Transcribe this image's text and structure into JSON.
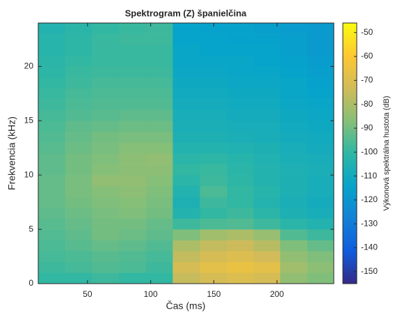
{
  "chart_data": {
    "type": "heatmap",
    "title": "Spektrogram (Z) španielčina",
    "x_label": "Čas (ms)",
    "y_label": "Frekvencia (kHz)",
    "colorbar_label": "Výkonová spektrálna hustota (dB)",
    "colormap": "parula",
    "x": [
      22,
      43,
      64,
      86,
      107,
      128,
      150,
      171,
      192,
      213,
      235
    ],
    "y": [
      0.5,
      1.5,
      2.5,
      3.5,
      4.5,
      5.5,
      6.5,
      7.5,
      8.5,
      9.5,
      10.5,
      11.5,
      12.5,
      13.5,
      14.5,
      15.5,
      16.5,
      17.5,
      18.5,
      19.5,
      20.5,
      21.5,
      22.5,
      23.5
    ],
    "z": [
      [
        -100,
        -100,
        -98,
        -100,
        -100,
        -75,
        -72,
        -70,
        -72,
        -85,
        -88
      ],
      [
        -98,
        -97,
        -95,
        -96,
        -98,
        -72,
        -68,
        -66,
        -68,
        -82,
        -86
      ],
      [
        -97,
        -96,
        -94,
        -95,
        -97,
        -76,
        -72,
        -70,
        -73,
        -85,
        -88
      ],
      [
        -96,
        -94,
        -92,
        -93,
        -95,
        -80,
        -76,
        -74,
        -78,
        -88,
        -92
      ],
      [
        -95,
        -93,
        -90,
        -91,
        -93,
        -88,
        -82,
        -80,
        -84,
        -95,
        -98
      ],
      [
        -94,
        -92,
        -90,
        -90,
        -92,
        -98,
        -96,
        -95,
        -98,
        -102,
        -104
      ],
      [
        -93,
        -91,
        -89,
        -88,
        -90,
        -104,
        -100,
        -98,
        -102,
        -106,
        -108
      ],
      [
        -92,
        -90,
        -88,
        -87,
        -89,
        -106,
        -98,
        -100,
        -104,
        -107,
        -109
      ],
      [
        -92,
        -89,
        -87,
        -86,
        -88,
        -104,
        -96,
        -100,
        -103,
        -106,
        -108
      ],
      [
        -92,
        -89,
        -85,
        -85,
        -87,
        -102,
        -98,
        -101,
        -104,
        -106,
        -108
      ],
      [
        -93,
        -90,
        -87,
        -86,
        -86,
        -100,
        -99,
        -102,
        -104,
        -106,
        -107
      ],
      [
        -93,
        -90,
        -88,
        -86,
        -85,
        -102,
        -101,
        -103,
        -105,
        -107,
        -108
      ],
      [
        -94,
        -91,
        -89,
        -87,
        -87,
        -104,
        -104,
        -105,
        -106,
        -108,
        -109
      ],
      [
        -95,
        -92,
        -90,
        -89,
        -89,
        -106,
        -106,
        -107,
        -108,
        -109,
        -110
      ],
      [
        -96,
        -93,
        -92,
        -91,
        -91,
        -107,
        -107,
        -108,
        -108,
        -110,
        -111
      ],
      [
        -97,
        -95,
        -94,
        -93,
        -93,
        -108,
        -108,
        -109,
        -109,
        -111,
        -112
      ],
      [
        -98,
        -96,
        -95,
        -95,
        -95,
        -109,
        -109,
        -110,
        -110,
        -112,
        -113
      ],
      [
        -99,
        -97,
        -96,
        -96,
        -96,
        -110,
        -110,
        -111,
        -111,
        -113,
        -114
      ],
      [
        -100,
        -98,
        -97,
        -97,
        -97,
        -111,
        -111,
        -112,
        -112,
        -113,
        -115
      ],
      [
        -101,
        -99,
        -98,
        -98,
        -98,
        -112,
        -112,
        -113,
        -113,
        -114,
        -116
      ],
      [
        -102,
        -100,
        -99,
        -99,
        -99,
        -113,
        -113,
        -113,
        -114,
        -115,
        -117
      ],
      [
        -103,
        -101,
        -99,
        -99,
        -99,
        -113,
        -114,
        -114,
        -114,
        -116,
        -118
      ],
      [
        -103,
        -101,
        -99,
        -98,
        -98,
        -114,
        -114,
        -115,
        -115,
        -116,
        -118
      ],
      [
        -104,
        -102,
        -100,
        -99,
        -98,
        -114,
        -115,
        -115,
        -116,
        -117,
        -118
      ]
    ],
    "xlim": [
      11,
      245
    ],
    "xticks": [
      50,
      100,
      150,
      200
    ],
    "ylim": [
      0,
      24
    ],
    "yticks": [
      0,
      5,
      10,
      15,
      20
    ],
    "clim": [
      -155,
      -46
    ],
    "cticks": [
      -150,
      -140,
      -130,
      -120,
      -110,
      -100,
      -90,
      -80,
      -70,
      -60,
      -50
    ]
  }
}
